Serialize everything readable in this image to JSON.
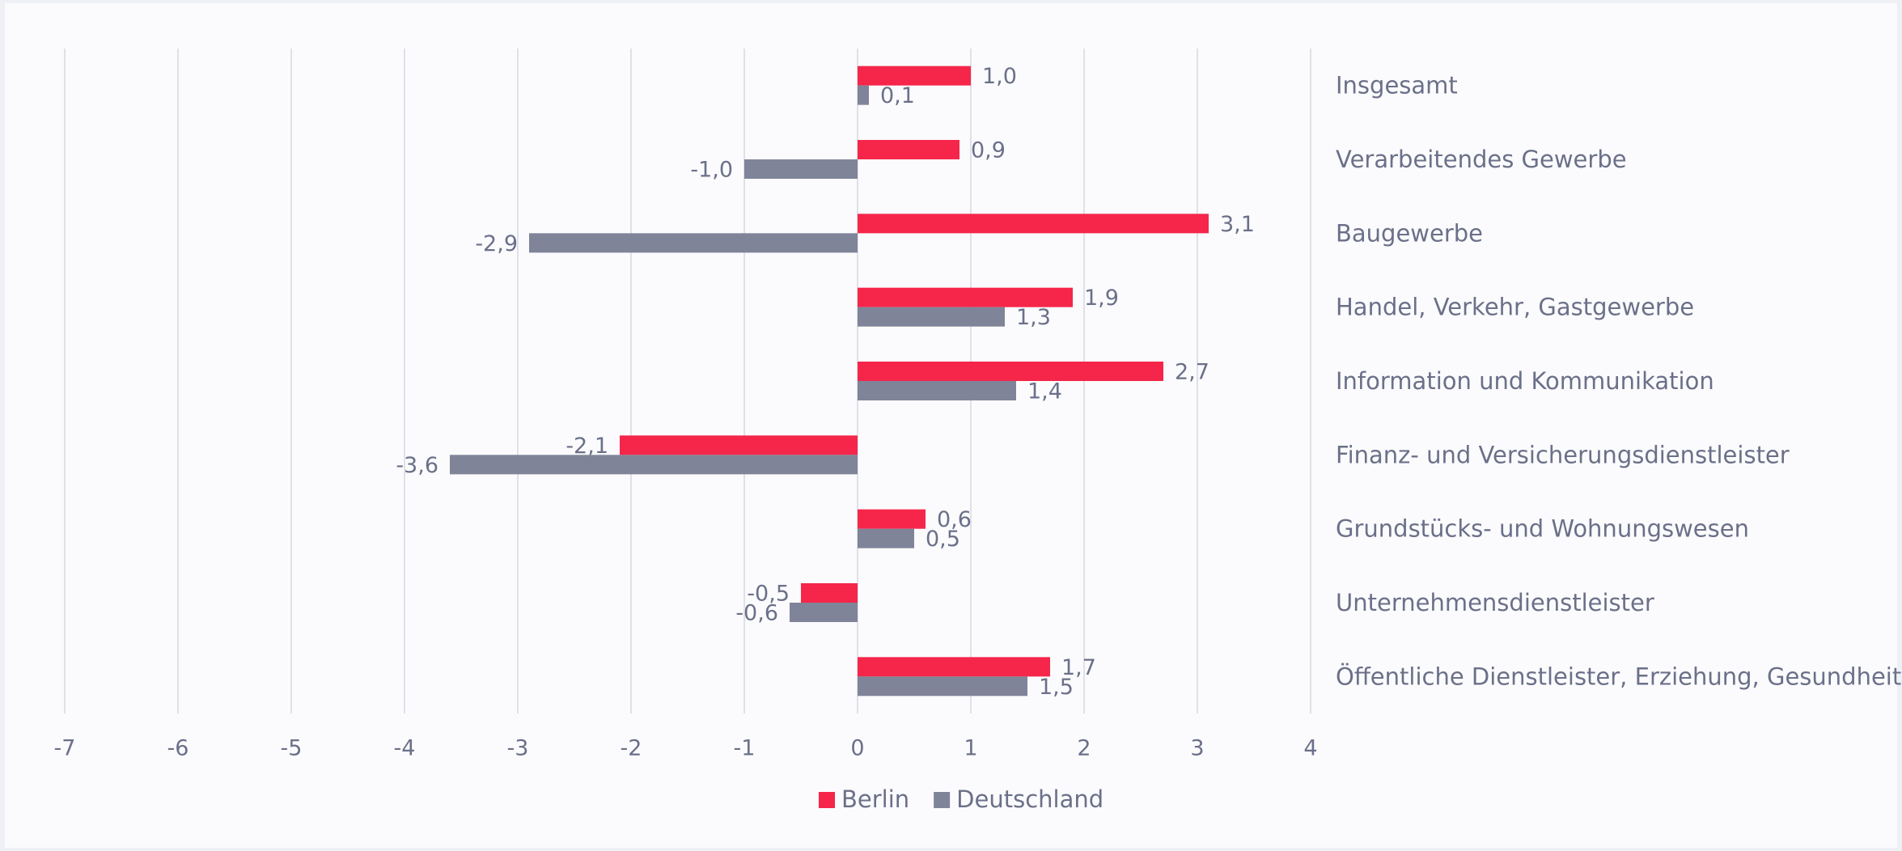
{
  "chart_data": {
    "type": "bar",
    "orientation": "horizontal",
    "categories": [
      "Insgesamt",
      "Verarbeitendes Gewerbe",
      "Baugewerbe",
      "Handel, Verkehr, Gastgewerbe",
      "Information und Kommunikation",
      "Finanz- und Versicherungsdienstleister",
      "Grundstücks- und Wohnungswesen",
      "Unternehmensdienstleister",
      "Öffentliche Dienstleister, Erziehung, Gesundheit"
    ],
    "series": [
      {
        "name": "Berlin",
        "color": "#f5264a",
        "values": [
          1.0,
          0.9,
          3.1,
          1.9,
          2.7,
          -2.1,
          0.6,
          -0.5,
          1.7
        ],
        "value_labels": [
          "1,0",
          "0,9",
          "3,1",
          "1,9",
          "2,7",
          "-2,1",
          "0,6",
          "-0,5",
          "1,7"
        ]
      },
      {
        "name": "Deutschland",
        "color": "#7f8499",
        "values": [
          0.1,
          -1.0,
          -2.9,
          1.3,
          1.4,
          -3.6,
          0.5,
          -0.6,
          1.5
        ],
        "value_labels": [
          "0,1",
          "-1,0",
          "-2,9",
          "1,3",
          "1,4",
          "-3,6",
          "0,5",
          "-0,6",
          "1,5"
        ]
      }
    ],
    "xlim": [
      -7,
      4
    ],
    "xticks": [
      -7,
      -6,
      -5,
      -4,
      -3,
      -2,
      -1,
      0,
      1,
      2,
      3,
      4
    ],
    "grid": true,
    "legend": "bottom"
  }
}
